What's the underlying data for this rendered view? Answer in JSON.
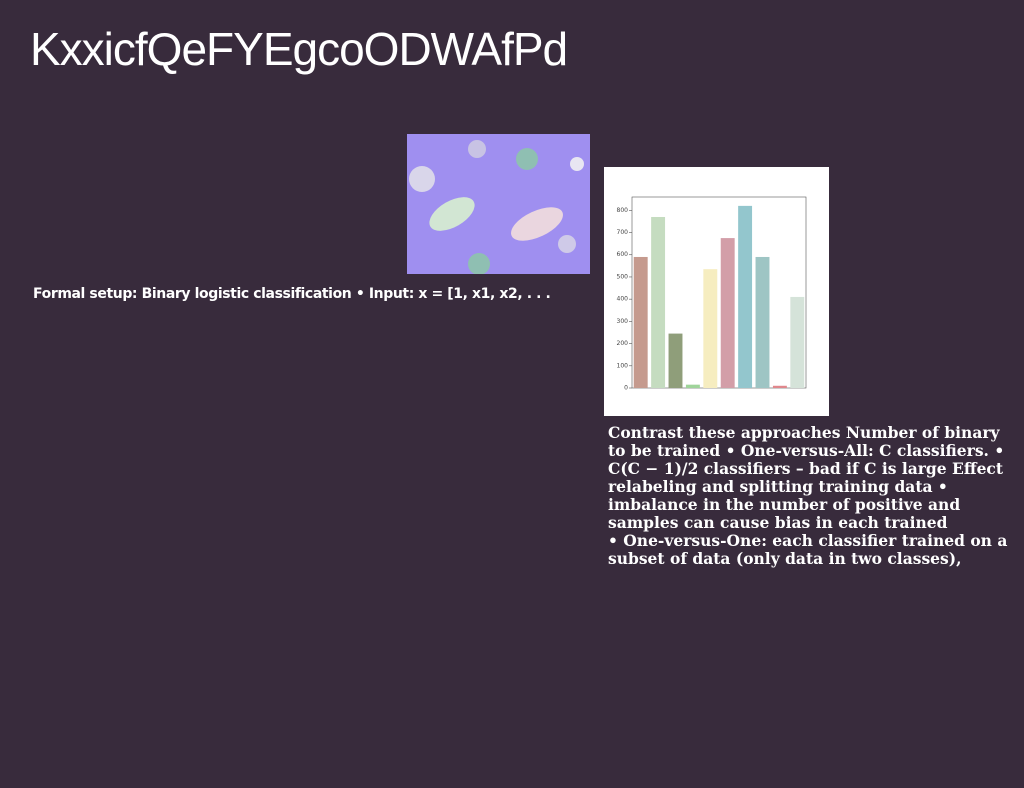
{
  "title": "KxxicfQeFYEgcoODWAfPd",
  "caption": "Formal setup: Binary logistic classification • Input: x = [1, x1, x2, . . .",
  "body_lines": [
    "Contrast these approaches Number of binary",
    "to be trained • One-versus-All: C classifiers. •",
    "C(C − 1)/2 classifiers – bad if C is large Effect",
    "relabeling and splitting training data •",
    "imbalance in the number of positive and",
    "samples can cause bias in each trained",
    "• One-versus-One: each classifier trained on a",
    "subset of data (only data in two classes),"
  ],
  "chart": {
    "type": "bar",
    "categories": [
      null,
      null,
      null,
      null,
      null,
      null,
      null,
      null,
      null,
      null
    ],
    "values": [
      590,
      770,
      245,
      15,
      535,
      675,
      820,
      590,
      10,
      410
    ],
    "colors": [
      "#c59a8e",
      "#c5dcc0",
      "#8f9e7a",
      "#9fd49a",
      "#f6edc0",
      "#d39ea8",
      "#93c6cd",
      "#9ec5c4",
      "#e0878c",
      "#d5e3d9"
    ],
    "ylim": [
      0,
      860
    ],
    "yticks": [
      0,
      100,
      200,
      300,
      400,
      500,
      600,
      700,
      800
    ]
  }
}
